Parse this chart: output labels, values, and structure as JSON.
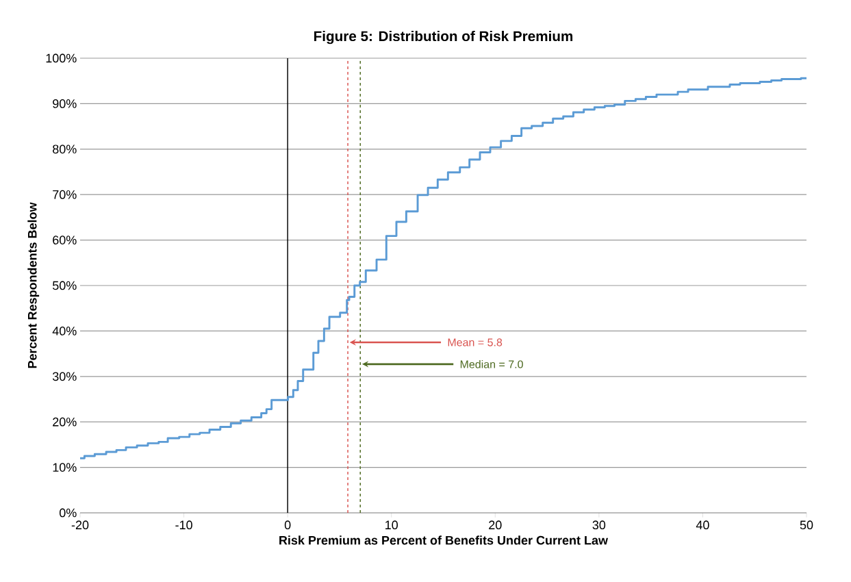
{
  "chart_data": {
    "type": "step",
    "title": "Figure 5: Distribution of Risk Premium",
    "xlabel": "Risk Premium as Percent of Benefits Under Current Law",
    "ylabel": "Percent Respondents Below",
    "x": [
      -20,
      -19.58,
      -18.59,
      -17.49,
      -16.5,
      -15.58,
      -14.52,
      -13.47,
      -12.43,
      -11.55,
      -10.45,
      -9.46,
      -8.47,
      -7.53,
      -6.49,
      -5.47,
      -4.52,
      -3.49,
      -2.54,
      -2.04,
      -1.55,
      0.03,
      0.54,
      0.98,
      1.49,
      2.48,
      2.96,
      3.51,
      4.02,
      5.05,
      5.71,
      5.93,
      6.44,
      6.96,
      7.53,
      8.57,
      9.51,
      10.48,
      11.43,
      12.53,
      13.52,
      14.46,
      15.45,
      16.6,
      17.52,
      18.53,
      19.52,
      20.55,
      21.59,
      22.53,
      23.52,
      24.58,
      25.57,
      26.56,
      27.53,
      28.54,
      29.57,
      30.56,
      31.5,
      32.5,
      33.53,
      34.52,
      35.55,
      37.6,
      38.59,
      40.5,
      42.61,
      43.6,
      45.51,
      46.61,
      47.6,
      49.47,
      50
    ],
    "values": [
      12.0,
      12.5,
      12.9,
      13.4,
      13.8,
      14.4,
      14.8,
      15.3,
      15.6,
      16.4,
      16.7,
      17.3,
      17.6,
      18.3,
      18.9,
      19.7,
      20.3,
      21.0,
      21.9,
      22.8,
      24.8,
      25.5,
      27.0,
      29.0,
      31.5,
      35.2,
      37.8,
      40.5,
      43.1,
      44.0,
      46.8,
      47.5,
      50.0,
      50.8,
      53.3,
      55.7,
      60.9,
      64.0,
      66.3,
      69.9,
      71.5,
      73.3,
      74.9,
      76.0,
      77.7,
      79.3,
      80.4,
      81.8,
      82.9,
      84.6,
      85.1,
      85.8,
      86.7,
      87.2,
      88.1,
      88.7,
      89.2,
      89.5,
      89.8,
      90.6,
      91.0,
      91.5,
      92.0,
      92.6,
      93.1,
      93.7,
      94.2,
      94.5,
      94.8,
      95.1,
      95.4,
      95.6,
      95.6
    ],
    "color": "#5b9bd5",
    "xlim": [
      -20,
      50
    ],
    "xticks": [
      -20,
      -10,
      0,
      10,
      20,
      30,
      40,
      50
    ],
    "ylim": [
      0,
      100
    ],
    "yticks": [
      {
        "value": 0,
        "label": "0%"
      },
      {
        "value": 10,
        "label": "10%"
      },
      {
        "value": 20,
        "label": "20%"
      },
      {
        "value": 30,
        "label": "30%"
      },
      {
        "value": 40,
        "label": "40%"
      },
      {
        "value": 50,
        "label": "50%"
      },
      {
        "value": 60,
        "label": "60%"
      },
      {
        "value": 70,
        "label": "70%"
      },
      {
        "value": 80,
        "label": "80%"
      },
      {
        "value": 90,
        "label": "90%"
      },
      {
        "value": 100,
        "label": "100%"
      }
    ],
    "grid": "y",
    "ref_lines": [
      {
        "axis": "x",
        "value": 0,
        "color": "#000000",
        "line_style": "solid"
      },
      {
        "axis": "x",
        "value": 5.8,
        "color": "#d9534f",
        "line_style": "dashed"
      },
      {
        "axis": "x",
        "value": 7.0,
        "color": "#4f6b22",
        "line_style": "dashed"
      }
    ],
    "annotations": [
      {
        "text": "Mean = 5.8",
        "x": 5.8,
        "y": 37.5
      },
      {
        "text": "Median = 7.0",
        "x": 7.0,
        "y": 32.7
      }
    ]
  }
}
